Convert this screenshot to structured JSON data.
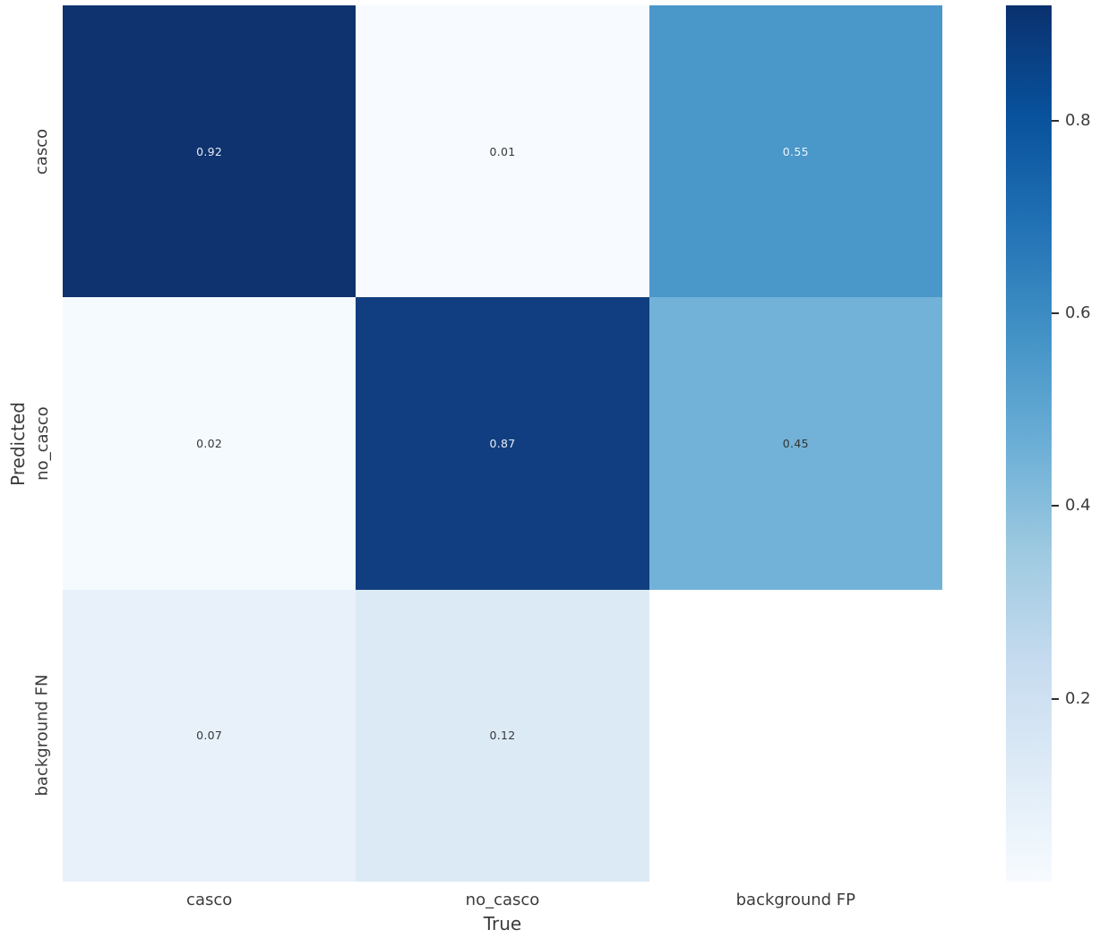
{
  "figure": {
    "background": "#ffffff",
    "text_color": "#3b3b3b"
  },
  "chart_data": {
    "type": "heatmap",
    "title": "",
    "xlabel": "True",
    "ylabel": "Predicted",
    "x_categories": [
      "casco",
      "no_casco",
      "background FP"
    ],
    "y_categories": [
      "casco",
      "no_casco",
      "background FN"
    ],
    "values": [
      [
        0.92,
        0.01,
        0.55
      ],
      [
        0.02,
        0.87,
        0.45
      ],
      [
        0.07,
        0.12,
        null
      ]
    ],
    "rows": [
      {
        "cells": [
          {
            "label": "0.92",
            "bg": "#0f336e",
            "fg": "#e9eaf4"
          },
          {
            "label": "0.01",
            "bg": "#f7fbff",
            "fg": "#373737"
          },
          {
            "label": "0.55",
            "bg": "#4a97c9",
            "fg": "#eef3f8"
          }
        ]
      },
      {
        "cells": [
          {
            "label": "0.02",
            "bg": "#f5fafe",
            "fg": "#373737"
          },
          {
            "label": "0.87",
            "bg": "#113e80",
            "fg": "#e9eaf4"
          },
          {
            "label": "0.45",
            "bg": "#72b2d8",
            "fg": "#333333"
          }
        ]
      },
      {
        "cells": [
          {
            "label": "0.07",
            "bg": "#e8f1fa",
            "fg": "#373737"
          },
          {
            "label": "0.12",
            "bg": "#dceaf6",
            "fg": "#373737"
          },
          {
            "label": "",
            "bg": "#ffffff",
            "fg": "#373737"
          }
        ]
      }
    ],
    "colormap": "Blues",
    "grid": false,
    "legend_position": "colorbar-right",
    "colorbar": {
      "vmin": 0.01,
      "vmax": 0.92,
      "tick_labels": [
        "0.8",
        "0.6",
        "0.4",
        "0.2"
      ],
      "tick_values": [
        0.8,
        0.6,
        0.4,
        0.2
      ],
      "gradient_stops_bottom_to_top": [
        "#f7fbff",
        "#deebf7",
        "#c6dbef",
        "#9ecae1",
        "#6baed6",
        "#4292c6",
        "#2171b5",
        "#08519c",
        "#0a316e"
      ]
    }
  }
}
